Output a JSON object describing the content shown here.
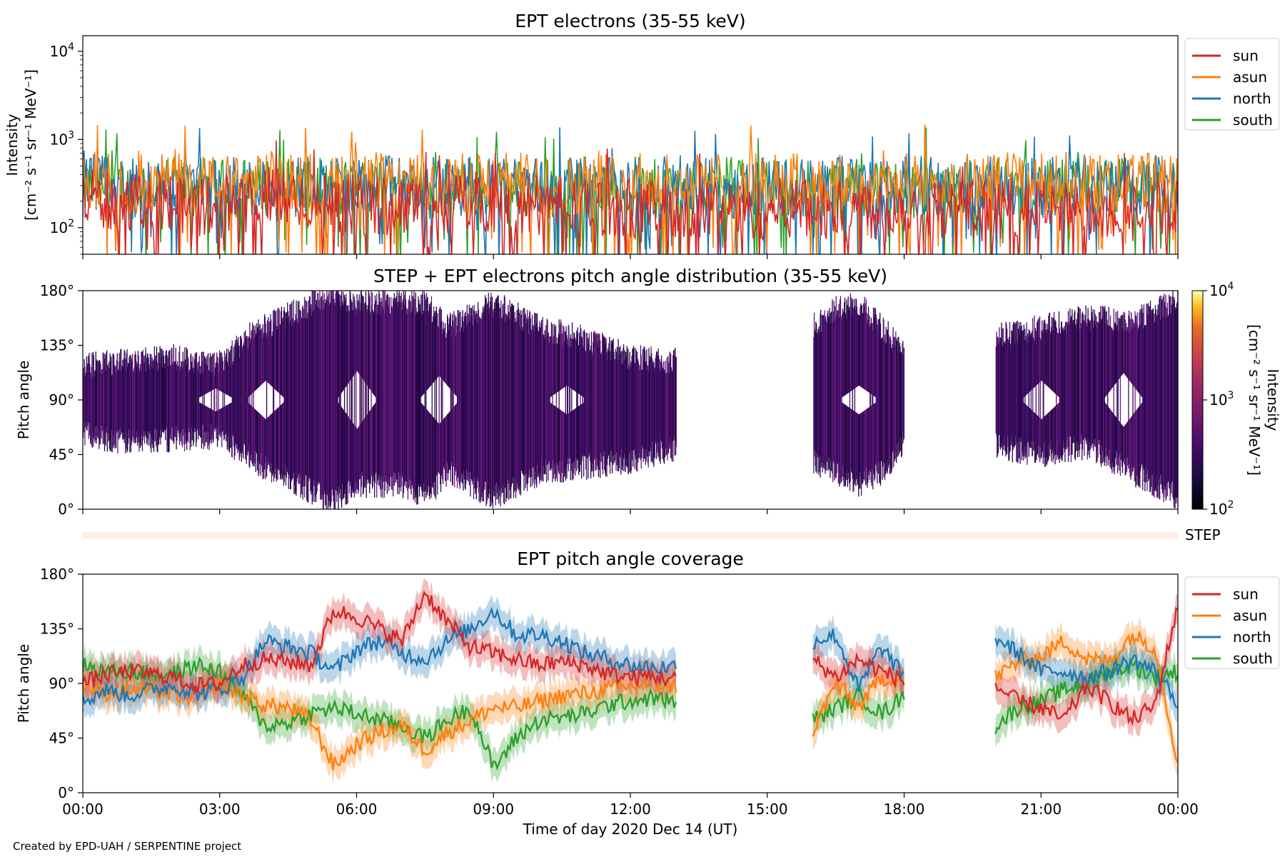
{
  "figure": {
    "credit": "Created by EPD-UAH / SERPENTINE project",
    "xlabel": "Time of day 2020 Dec 14 (UT)",
    "time_ticks": [
      "00:00",
      "03:00",
      "06:00",
      "09:00",
      "12:00",
      "15:00",
      "18:00",
      "21:00",
      "00:00"
    ],
    "x_range_hours": [
      0,
      24
    ]
  },
  "colors": {
    "sun": "#d62728",
    "asun": "#ff7f0e",
    "north": "#1f77b4",
    "south": "#2ca02c",
    "pad_fill": "#3a0d63",
    "step_strip": "#fdeee6"
  },
  "panels": {
    "intensity": {
      "title": "EPT electrons (35-55 keV)",
      "ylabel_line1": "Intensity",
      "ylabel_line2": "[cm⁻² s⁻¹ sr⁻¹ MeV⁻¹]",
      "yticks": [
        {
          "base": "10",
          "exp": "2",
          "value": 100
        },
        {
          "base": "10",
          "exp": "3",
          "value": 1000
        },
        {
          "base": "10",
          "exp": "4",
          "value": 10000
        }
      ],
      "legend": [
        "sun",
        "asun",
        "north",
        "south"
      ]
    },
    "pad": {
      "title": "STEP + EPT electrons pitch angle distribution (35-55 keV)",
      "ylabel": "Pitch angle",
      "yticks": [
        "0°",
        "45°",
        "90°",
        "135°",
        "180°"
      ],
      "colorbar_label_line1": "Intensity",
      "colorbar_label_line2": "[cm⁻² s⁻¹ sr⁻¹ MeV⁻¹]",
      "colorbar_ticks": [
        {
          "base": "10",
          "exp": "2",
          "value": 100
        },
        {
          "base": "10",
          "exp": "3",
          "value": 1000
        },
        {
          "base": "10",
          "exp": "4",
          "value": 10000
        }
      ]
    },
    "step": {
      "label": "STEP"
    },
    "coverage": {
      "title": "EPT pitch angle coverage",
      "ylabel": "Pitch angle",
      "yticks": [
        "0°",
        "45°",
        "90°",
        "135°",
        "180°"
      ],
      "legend": [
        "sun",
        "asun",
        "north",
        "south"
      ]
    }
  },
  "chart_data": [
    {
      "type": "line",
      "title": "EPT electrons (35-55 keV)",
      "xlabel": "",
      "ylabel": "Intensity [cm⁻² s⁻¹ sr⁻¹ MeV⁻¹]",
      "yscale": "log",
      "ylim": [
        50,
        15000
      ],
      "xlim": [
        0,
        24
      ],
      "legend_position": "outside-right-top",
      "x_hours": [
        0,
        0.5,
        1,
        1.5,
        2,
        2.5,
        3,
        3.5,
        4,
        4.5,
        5,
        5.5,
        6,
        6.5,
        7,
        7.5,
        8,
        8.5,
        9,
        9.5,
        10,
        10.5,
        11,
        11.5,
        12,
        12.5,
        13,
        13.5,
        14,
        14.5,
        15,
        15.5,
        16,
        16.5,
        17,
        17.5,
        18,
        18.5,
        19,
        19.5,
        20,
        20.5,
        21,
        21.5,
        22,
        22.5,
        23,
        23.5,
        24
      ],
      "series": [
        {
          "name": "sun",
          "values": [
            220,
            200,
            180,
            210,
            190,
            170,
            200,
            180,
            230,
            210,
            190,
            200,
            180,
            170,
            190,
            200,
            180,
            210,
            190,
            170,
            180,
            190,
            160,
            180,
            170,
            160,
            150,
            160,
            170,
            150,
            160,
            170,
            160,
            150,
            170,
            160,
            180,
            170,
            160,
            150,
            160,
            170,
            160,
            150,
            160,
            170,
            150,
            160,
            160
          ]
        },
        {
          "name": "asun",
          "values": [
            330,
            340,
            300,
            320,
            310,
            330,
            300,
            320,
            340,
            330,
            320,
            300,
            310,
            330,
            320,
            300,
            310,
            330,
            320,
            330,
            310,
            300,
            320,
            330,
            340,
            310,
            300,
            320,
            330,
            310,
            320,
            330,
            300,
            310,
            320,
            330,
            320,
            310,
            300,
            330,
            320,
            340,
            310,
            330,
            320,
            300,
            330,
            320,
            340
          ]
        },
        {
          "name": "north",
          "values": [
            290,
            300,
            280,
            290,
            300,
            310,
            290,
            280,
            300,
            310,
            300,
            290,
            280,
            300,
            310,
            290,
            280,
            300,
            310,
            290,
            300,
            280,
            290,
            300,
            290,
            280,
            300,
            290,
            280,
            290,
            300,
            290,
            280,
            300,
            290,
            280,
            290,
            300,
            280,
            290,
            300,
            290,
            280,
            300,
            290,
            280,
            290,
            300,
            290
          ]
        },
        {
          "name": "south",
          "values": [
            280,
            290,
            270,
            300,
            290,
            280,
            270,
            290,
            300,
            280,
            290,
            270,
            280,
            290,
            300,
            270,
            280,
            290,
            280,
            270,
            290,
            280,
            270,
            280,
            290,
            270,
            280,
            270,
            290,
            280,
            270,
            280,
            290,
            270,
            280,
            290,
            270,
            280,
            290,
            270,
            280,
            290,
            270,
            280,
            270,
            290,
            280,
            270,
            280
          ]
        }
      ]
    },
    {
      "type": "heatmap",
      "title": "STEP + EPT electrons pitch angle distribution (35-55 keV)",
      "xlabel": "",
      "ylabel": "Pitch angle",
      "xlim": [
        0,
        24
      ],
      "ylim": [
        0,
        180
      ],
      "color_scale": "log",
      "clim": [
        100,
        10000
      ],
      "colorbar_label": "Intensity [cm⁻² s⁻¹ sr⁻¹ MeV⁻¹]",
      "data_intervals_hours": [
        [
          0,
          13.0
        ],
        [
          16.0,
          18.0
        ],
        [
          20.0,
          24
        ]
      ],
      "typical_intensity": 300,
      "x_hours": [
        0,
        1,
        2,
        3,
        3.7,
        4.5,
        5.5,
        6,
        7,
        7.5,
        8,
        9,
        10,
        11,
        12,
        12.9,
        16,
        16.5,
        17,
        17.5,
        18,
        20,
        21,
        22,
        23,
        24
      ],
      "pitch_angle_min_deg": [
        62,
        55,
        58,
        60,
        40,
        25,
        5,
        20,
        20,
        10,
        30,
        10,
        30,
        35,
        40,
        50,
        38,
        30,
        20,
        30,
        55,
        52,
        45,
        52,
        30,
        10
      ],
      "pitch_angle_max_deg": [
        118,
        123,
        125,
        120,
        145,
        160,
        178,
        170,
        172,
        170,
        150,
        170,
        150,
        140,
        125,
        122,
        152,
        165,
        170,
        150,
        128,
        142,
        150,
        158,
        155,
        172
      ]
    },
    {
      "type": "line",
      "title": "EPT pitch angle coverage",
      "xlabel": "Time of day 2020 Dec 14 (UT)",
      "ylabel": "Pitch angle",
      "xlim": [
        0,
        24
      ],
      "ylim": [
        0,
        180
      ],
      "legend_position": "outside-right-top",
      "data_intervals_hours": [
        [
          0,
          13.0
        ],
        [
          16.0,
          18.0
        ],
        [
          20.0,
          24
        ]
      ],
      "x_hours": [
        0,
        0.5,
        1,
        1.5,
        2,
        2.5,
        3,
        3.5,
        4,
        4.5,
        5,
        5.5,
        6,
        6.5,
        7,
        7.5,
        8,
        8.5,
        9,
        9.5,
        10,
        10.5,
        11,
        11.5,
        12,
        12.5,
        13,
        16,
        16.5,
        17,
        17.5,
        18,
        20,
        20.5,
        21,
        21.5,
        22,
        22.5,
        23,
        23.5,
        24
      ],
      "series": [
        {
          "name": "sun",
          "values": [
            90,
            97,
            100,
            98,
            95,
            88,
            90,
            105,
            110,
            108,
            105,
            150,
            145,
            135,
            125,
            165,
            140,
            120,
            115,
            110,
            105,
            108,
            105,
            98,
            95,
            96,
            93,
            110,
            95,
            110,
            100,
            92,
            88,
            75,
            70,
            60,
            88,
            75,
            60,
            72,
            155
          ]
        },
        {
          "name": "asun",
          "values": [
            88,
            82,
            85,
            85,
            80,
            78,
            90,
            80,
            72,
            70,
            60,
            22,
            40,
            50,
            55,
            35,
            50,
            60,
            70,
            70,
            75,
            80,
            82,
            85,
            88,
            90,
            88,
            50,
            90,
            70,
            95,
            92,
            95,
            108,
            112,
            125,
            110,
            108,
            130,
            120,
            25
          ]
        },
        {
          "name": "north",
          "values": [
            75,
            85,
            80,
            85,
            88,
            82,
            85,
            95,
            125,
            120,
            115,
            100,
            118,
            125,
            115,
            110,
            125,
            135,
            150,
            130,
            130,
            125,
            115,
            110,
            105,
            103,
            104,
            125,
            130,
            85,
            120,
            95,
            128,
            115,
            100,
            100,
            95,
            100,
            110,
            100,
            75
          ]
        },
        {
          "name": "south",
          "values": [
            105,
            100,
            100,
            98,
            98,
            105,
            100,
            80,
            55,
            58,
            65,
            70,
            65,
            60,
            55,
            45,
            60,
            70,
            20,
            45,
            60,
            62,
            65,
            72,
            76,
            78,
            75,
            60,
            70,
            80,
            65,
            80,
            55,
            70,
            75,
            85,
            90,
            100,
            105,
            95,
            100
          ]
        }
      ],
      "band_halfwidth_deg": 12
    }
  ]
}
